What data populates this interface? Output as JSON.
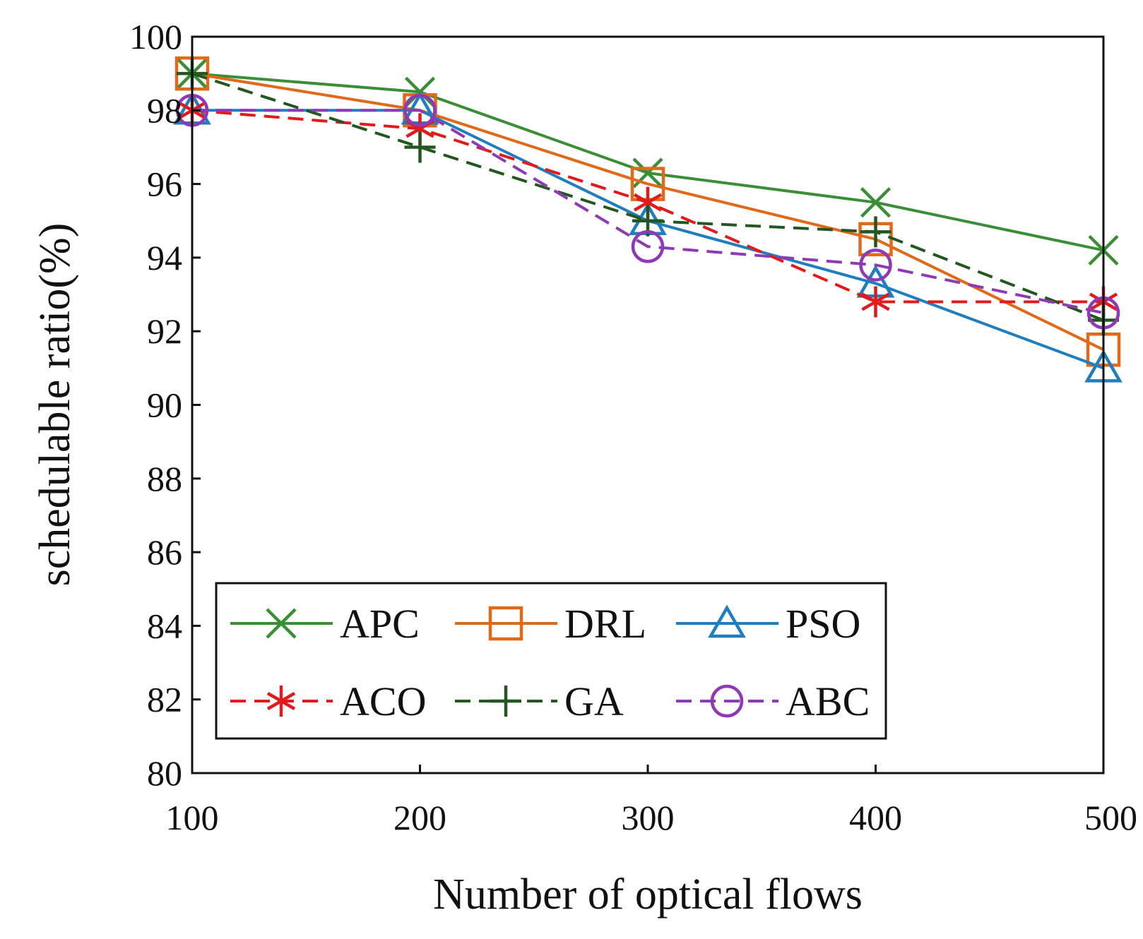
{
  "chart_data": {
    "type": "line",
    "title": "",
    "xlabel": "Number of optical flows",
    "ylabel": "schedulable ratio(%)",
    "x": [
      100,
      200,
      300,
      400,
      500
    ],
    "xlim": [
      100,
      500
    ],
    "ylim": [
      80,
      100
    ],
    "xticks": [
      "100",
      "200",
      "300",
      "400",
      "500"
    ],
    "yticks": [
      "80",
      "82",
      "84",
      "86",
      "88",
      "90",
      "92",
      "94",
      "96",
      "98",
      "100"
    ],
    "grid": false,
    "legend_position": "lower-left",
    "series": [
      {
        "name": "APC",
        "color": "#3a8e35",
        "dash": "solid",
        "marker": "x",
        "values": [
          99.0,
          98.5,
          96.3,
          95.5,
          94.2
        ]
      },
      {
        "name": "DRL",
        "color": "#e0691a",
        "dash": "solid",
        "marker": "square",
        "values": [
          99.0,
          98.0,
          96.0,
          94.5,
          91.5
        ]
      },
      {
        "name": "PSO",
        "color": "#1f7ec0",
        "dash": "solid",
        "marker": "triangle",
        "values": [
          98.0,
          98.0,
          95.0,
          93.3,
          91.0
        ]
      },
      {
        "name": "ACO",
        "color": "#e31a1c",
        "dash": "dashed",
        "marker": "asterisk",
        "values": [
          98.0,
          97.5,
          95.5,
          92.8,
          92.8
        ]
      },
      {
        "name": "GA",
        "color": "#22581f",
        "dash": "dashed",
        "marker": "plus",
        "values": [
          99.0,
          97.0,
          95.0,
          94.7,
          92.3
        ]
      },
      {
        "name": "ABC",
        "color": "#8e3ab5",
        "dash": "dashed",
        "marker": "circle",
        "values": [
          98.0,
          98.0,
          94.3,
          93.8,
          92.5
        ]
      }
    ]
  }
}
